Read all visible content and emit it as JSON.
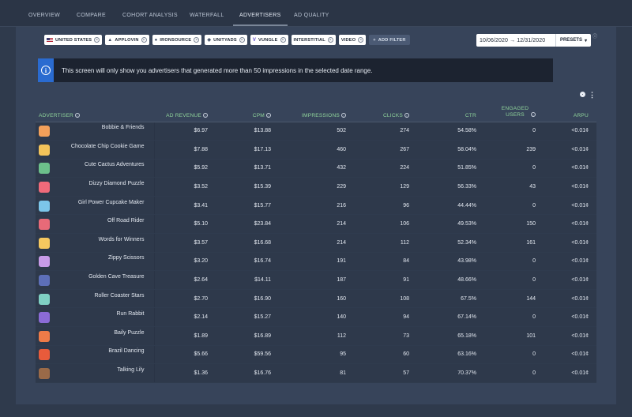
{
  "nav": {
    "tabs": [
      {
        "label": "OVERVIEW"
      },
      {
        "label": "COMPARE"
      },
      {
        "label": "COHORT ANALYSIS"
      },
      {
        "label": "WATERFALL"
      },
      {
        "label": "ADVERTISERS"
      },
      {
        "label": "AD QUALITY"
      }
    ],
    "active_tab": "ADVERTISERS"
  },
  "filters": {
    "chips": [
      {
        "label": "UNITED STATES"
      },
      {
        "label": "APPLOVIN"
      },
      {
        "label": "IRONSOURCE"
      },
      {
        "label": "UNITYADS"
      },
      {
        "label": "VUNGLE"
      },
      {
        "label": "INTERSTITIAL"
      },
      {
        "label": "VIDEO"
      }
    ],
    "add_label": "ADD FILTER"
  },
  "date_range": {
    "text": "10/06/2020 → 12/31/2020",
    "presets_label": "PRESETS"
  },
  "notice": {
    "icon": "i",
    "text": "This screen will only show you advertisers that generated more than 50 impressions in the selected date range."
  },
  "table": {
    "columns": [
      "ADVERTISER",
      "AD REVENUE",
      "CPM",
      "IMPRESSIONS",
      "CLICKS",
      "CTR",
      "ENGAGED USERS",
      "ARPU"
    ],
    "rows": [
      {
        "name": "Bobbie & Friends",
        "revenue": "$6.97",
        "cpm": "$13.88",
        "impressions": "502",
        "clicks": "274",
        "ctr": "54.58%",
        "engaged": "0",
        "arpu": "<0.01¢",
        "color": "#f2a05a"
      },
      {
        "name": "Chocolate Chip Cookie Game",
        "revenue": "$7.88",
        "cpm": "$17.13",
        "impressions": "460",
        "clicks": "267",
        "ctr": "58.04%",
        "engaged": "239",
        "arpu": "<0.01¢",
        "color": "#f3c35a"
      },
      {
        "name": "Cute Cactus Adventures",
        "revenue": "$5.92",
        "cpm": "$13.71",
        "impressions": "432",
        "clicks": "224",
        "ctr": "51.85%",
        "engaged": "0",
        "arpu": "<0.01¢",
        "color": "#6cc08b"
      },
      {
        "name": "Dizzy Diamond Puzzle",
        "revenue": "$3.52",
        "cpm": "$15.39",
        "impressions": "229",
        "clicks": "129",
        "ctr": "56.33%",
        "engaged": "43",
        "arpu": "<0.01¢",
        "color": "#ef6a7a"
      },
      {
        "name": "Girl Power Cupcake Maker",
        "revenue": "$3.41",
        "cpm": "$15.77",
        "impressions": "216",
        "clicks": "96",
        "ctr": "44.44%",
        "engaged": "0",
        "arpu": "<0.01¢",
        "color": "#7cc6ea"
      },
      {
        "name": "Off Road Rider",
        "revenue": "$5.10",
        "cpm": "$23.84",
        "impressions": "214",
        "clicks": "106",
        "ctr": "49.53%",
        "engaged": "150",
        "arpu": "<0.01¢",
        "color": "#e86a78"
      },
      {
        "name": "Words for Winners",
        "revenue": "$3.57",
        "cpm": "$16.68",
        "impressions": "214",
        "clicks": "112",
        "ctr": "52.34%",
        "engaged": "161",
        "arpu": "<0.01¢",
        "color": "#f6c85f"
      },
      {
        "name": "Zippy Scissors",
        "revenue": "$3.20",
        "cpm": "$16.74",
        "impressions": "191",
        "clicks": "84",
        "ctr": "43.98%",
        "engaged": "0",
        "arpu": "<0.01¢",
        "color": "#c89be8"
      },
      {
        "name": "Golden Cave Treasure",
        "revenue": "$2.64",
        "cpm": "$14.11",
        "impressions": "187",
        "clicks": "91",
        "ctr": "48.66%",
        "engaged": "0",
        "arpu": "<0.01¢",
        "color": "#5d6fb8"
      },
      {
        "name": "Roller Coaster Stars",
        "revenue": "$2.70",
        "cpm": "$16.90",
        "impressions": "160",
        "clicks": "108",
        "ctr": "67.5%",
        "engaged": "144",
        "arpu": "<0.01¢",
        "color": "#7fd0c3"
      },
      {
        "name": "Run Rabbit",
        "revenue": "$2.14",
        "cpm": "$15.27",
        "impressions": "140",
        "clicks": "94",
        "ctr": "67.14%",
        "engaged": "0",
        "arpu": "<0.01¢",
        "color": "#8b6bd6"
      },
      {
        "name": "Baily Puzzle",
        "revenue": "$1.89",
        "cpm": "$16.89",
        "impressions": "112",
        "clicks": "73",
        "ctr": "65.18%",
        "engaged": "101",
        "arpu": "<0.01¢",
        "color": "#ee7b48"
      },
      {
        "name": "Brazil Dancing",
        "revenue": "$5.66",
        "cpm": "$59.56",
        "impressions": "95",
        "clicks": "60",
        "ctr": "63.16%",
        "engaged": "0",
        "arpu": "<0.01¢",
        "color": "#e85b3b"
      },
      {
        "name": "Talking Lily",
        "revenue": "$1.36",
        "cpm": "$16.76",
        "impressions": "81",
        "clicks": "57",
        "ctr": "70.37%",
        "engaged": "0",
        "arpu": "<0.01¢",
        "color": "#9a6a48"
      }
    ]
  },
  "colors": {
    "header_green": "#8fd39a",
    "notice_blue": "#2a6bd0"
  }
}
